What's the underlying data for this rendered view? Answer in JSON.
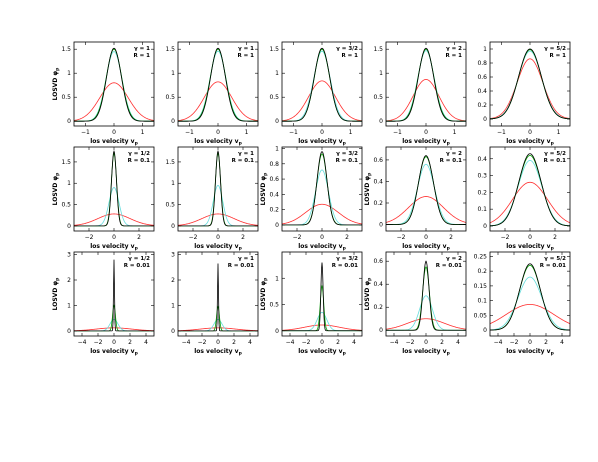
{
  "figure": {
    "colors": {
      "black": "#000000",
      "green": "#00a000",
      "cyan": "#66dddd",
      "red": "#ff3030"
    }
  },
  "chart_data": [
    {
      "type": "line",
      "panel": [
        0,
        0
      ],
      "gamma_label": "γ = 1",
      "r_label": "R = 1",
      "xlabel": "los velocity v_p",
      "ylabel": "LOSVD φ_p",
      "xlim": [
        -1.4,
        1.4
      ],
      "ylim": [
        -0.1,
        1.65
      ],
      "xticks": [
        -1,
        0,
        1
      ],
      "yticks": [
        0,
        0.5,
        1,
        1.5
      ],
      "ytick_labels": [
        "0",
        "0.5",
        "1",
        "1.5"
      ],
      "series": [
        {
          "color": "black",
          "peak": 1.52,
          "width": 0.26
        },
        {
          "color": "green",
          "peak": 1.5,
          "width": 0.27
        },
        {
          "color": "cyan",
          "peak": 1.45,
          "width": 0.28
        },
        {
          "color": "red",
          "peak": 0.8,
          "width": 0.5
        }
      ]
    },
    {
      "type": "line",
      "panel": [
        0,
        1
      ],
      "gamma_label": "γ = 1",
      "r_label": "R = 1",
      "xlabel": "los velocity v_p",
      "ylabel": "",
      "xlim": [
        -1.4,
        1.4
      ],
      "ylim": [
        -0.1,
        1.65
      ],
      "xticks": [
        -1,
        0,
        1
      ],
      "yticks": [
        0,
        0.5,
        1,
        1.5
      ],
      "ytick_labels": [
        "0",
        "0.5",
        "1",
        "1.5"
      ],
      "series": [
        {
          "color": "black",
          "peak": 1.52,
          "width": 0.26
        },
        {
          "color": "green",
          "peak": 1.5,
          "width": 0.27
        },
        {
          "color": "cyan",
          "peak": 1.46,
          "width": 0.28
        },
        {
          "color": "red",
          "peak": 0.82,
          "width": 0.48
        }
      ]
    },
    {
      "type": "line",
      "panel": [
        0,
        2
      ],
      "gamma_label": "γ = 3/2",
      "r_label": "R = 1",
      "xlabel": "los velocity v_p",
      "ylabel": "",
      "xlim": [
        -1.4,
        1.4
      ],
      "ylim": [
        -0.1,
        1.65
      ],
      "xticks": [
        -1,
        0,
        1
      ],
      "yticks": [
        0,
        0.5,
        1,
        1.5
      ],
      "ytick_labels": [
        "0",
        "0.5",
        "1",
        "1.5"
      ],
      "series": [
        {
          "color": "black",
          "peak": 1.52,
          "width": 0.27
        },
        {
          "color": "green",
          "peak": 1.5,
          "width": 0.27
        },
        {
          "color": "cyan",
          "peak": 1.46,
          "width": 0.29
        },
        {
          "color": "red",
          "peak": 0.84,
          "width": 0.47
        }
      ]
    },
    {
      "type": "line",
      "panel": [
        0,
        3
      ],
      "gamma_label": "γ = 2",
      "r_label": "R = 1",
      "xlabel": "los velocity v_p",
      "ylabel": "",
      "xlim": [
        -1.4,
        1.4
      ],
      "ylim": [
        -0.1,
        1.65
      ],
      "xticks": [
        -1,
        0,
        1
      ],
      "yticks": [
        0,
        0.5,
        1,
        1.5
      ],
      "ytick_labels": [
        "0",
        "0.5",
        "1",
        "1.5"
      ],
      "series": [
        {
          "color": "black",
          "peak": 1.52,
          "width": 0.27
        },
        {
          "color": "green",
          "peak": 1.5,
          "width": 0.28
        },
        {
          "color": "cyan",
          "peak": 1.47,
          "width": 0.29
        },
        {
          "color": "red",
          "peak": 0.87,
          "width": 0.45
        }
      ]
    },
    {
      "type": "line",
      "panel": [
        0,
        4
      ],
      "gamma_label": "γ = 5/2",
      "r_label": "R = 1",
      "xlabel": "los velocity v_p",
      "ylabel": "",
      "xlim": [
        -1.4,
        1.4
      ],
      "ylim": [
        -0.1,
        1.1
      ],
      "xticks": [
        -1,
        0,
        1
      ],
      "yticks": [
        0,
        0.2,
        0.4,
        0.6,
        0.8,
        1
      ],
      "ytick_labels": [
        "0",
        "0.2",
        "0.4",
        "0.6",
        "0.8",
        "1"
      ],
      "series": [
        {
          "color": "black",
          "peak": 1.0,
          "width": 0.4
        },
        {
          "color": "green",
          "peak": 0.99,
          "width": 0.4
        },
        {
          "color": "cyan",
          "peak": 0.97,
          "width": 0.41
        },
        {
          "color": "red",
          "peak": 0.86,
          "width": 0.45
        }
      ]
    },
    {
      "type": "line",
      "panel": [
        1,
        0
      ],
      "gamma_label": "γ = 1/2",
      "r_label": "R = 0.1",
      "xlabel": "los velocity v_p",
      "ylabel": "LOSVD φ_p",
      "xlim": [
        -3.2,
        3.2
      ],
      "ylim": [
        -0.12,
        1.85
      ],
      "xticks": [
        -2,
        0,
        2
      ],
      "yticks": [
        0,
        0.5,
        1,
        1.5
      ],
      "ytick_labels": [
        "0",
        "0.5",
        "1",
        "1.5"
      ],
      "series": [
        {
          "color": "black",
          "peak": 1.75,
          "width": 0.2
        },
        {
          "color": "green",
          "peak": 1.7,
          "width": 0.21
        },
        {
          "color": "cyan",
          "peak": 0.9,
          "width": 0.4
        },
        {
          "color": "red",
          "peak": 0.28,
          "width": 1.3
        }
      ]
    },
    {
      "type": "line",
      "panel": [
        1,
        1
      ],
      "gamma_label": "γ = 1",
      "r_label": "R = 0.1",
      "xlabel": "los velocity v_p",
      "ylabel": "",
      "xlim": [
        -3.2,
        3.2
      ],
      "ylim": [
        -0.12,
        1.85
      ],
      "xticks": [
        -2,
        0,
        2
      ],
      "yticks": [
        0,
        0.5,
        1,
        1.5
      ],
      "ytick_labels": [
        "0",
        "0.5",
        "1",
        "1.5"
      ],
      "series": [
        {
          "color": "black",
          "peak": 1.75,
          "width": 0.2
        },
        {
          "color": "green",
          "peak": 1.7,
          "width": 0.21
        },
        {
          "color": "cyan",
          "peak": 0.95,
          "width": 0.38
        },
        {
          "color": "red",
          "peak": 0.28,
          "width": 1.3
        }
      ]
    },
    {
      "type": "line",
      "panel": [
        1,
        2
      ],
      "gamma_label": "γ = 3/2",
      "r_label": "R = 0.1",
      "xlabel": "los velocity v_p",
      "ylabel": "LOSVD φ_p",
      "xlim": [
        -3.2,
        3.2
      ],
      "ylim": [
        -0.08,
        1.02
      ],
      "xticks": [
        -2,
        0,
        2
      ],
      "yticks": [
        0,
        0.2,
        0.4,
        0.6,
        0.8,
        1
      ],
      "ytick_labels": [
        "0",
        "0.2",
        "0.4",
        "0.6",
        "0.8",
        "1"
      ],
      "series": [
        {
          "color": "black",
          "peak": 0.96,
          "width": 0.4
        },
        {
          "color": "green",
          "peak": 0.93,
          "width": 0.41
        },
        {
          "color": "cyan",
          "peak": 0.72,
          "width": 0.52
        },
        {
          "color": "red",
          "peak": 0.27,
          "width": 1.3
        }
      ]
    },
    {
      "type": "line",
      "panel": [
        1,
        3
      ],
      "gamma_label": "γ = 2",
      "r_label": "R = 0.1",
      "xlabel": "los velocity v_p",
      "ylabel": "LOSVD φ_p",
      "xlim": [
        -3.2,
        3.2
      ],
      "ylim": [
        -0.06,
        0.72
      ],
      "xticks": [
        -2,
        0,
        2
      ],
      "yticks": [
        0,
        0.2,
        0.4,
        0.6
      ],
      "ytick_labels": [
        "0",
        "0.2",
        "0.4",
        "0.6"
      ],
      "series": [
        {
          "color": "black",
          "peak": 0.64,
          "width": 0.6
        },
        {
          "color": "green",
          "peak": 0.63,
          "width": 0.61
        },
        {
          "color": "cyan",
          "peak": 0.56,
          "width": 0.68
        },
        {
          "color": "red",
          "peak": 0.26,
          "width": 1.4
        }
      ]
    },
    {
      "type": "line",
      "panel": [
        1,
        4
      ],
      "gamma_label": "γ = 5/2",
      "r_label": "R = 0.1",
      "xlabel": "los velocity v_p",
      "ylabel": "",
      "xlim": [
        -3.2,
        3.2
      ],
      "ylim": [
        -0.03,
        0.47
      ],
      "xticks": [
        -2,
        0,
        2
      ],
      "yticks": [
        0,
        0.1,
        0.2,
        0.3,
        0.4
      ],
      "ytick_labels": [
        "0",
        "0.1",
        "0.2",
        "0.3",
        "0.4"
      ],
      "series": [
        {
          "color": "black",
          "peak": 0.43,
          "width": 0.9
        },
        {
          "color": "green",
          "peak": 0.42,
          "width": 0.91
        },
        {
          "color": "cyan",
          "peak": 0.39,
          "width": 0.95
        },
        {
          "color": "red",
          "peak": 0.26,
          "width": 1.4
        }
      ]
    },
    {
      "type": "line",
      "panel": [
        2,
        0
      ],
      "gamma_label": "γ = 1/2",
      "r_label": "R = 0.01",
      "xlabel": "los velocity v_p",
      "ylabel": "LOSVD φ_p",
      "xlim": [
        -5,
        5
      ],
      "ylim": [
        -0.2,
        3.1
      ],
      "xticks": [
        -4,
        -2,
        0,
        2,
        4
      ],
      "yticks": [
        0,
        1,
        2,
        3
      ],
      "ytick_labels": [
        "0",
        "1",
        "2",
        "3"
      ],
      "series": [
        {
          "color": "black",
          "peak": 2.8,
          "width": 0.06
        },
        {
          "color": "green",
          "peak": 1.0,
          "width": 0.18
        },
        {
          "color": "cyan",
          "peak": 0.45,
          "width": 0.5
        },
        {
          "color": "red",
          "peak": 0.12,
          "width": 2.2
        }
      ]
    },
    {
      "type": "line",
      "panel": [
        2,
        1
      ],
      "gamma_label": "γ = 1",
      "r_label": "R = 0.01",
      "xlabel": "los velocity v_p",
      "ylabel": "",
      "xlim": [
        -5,
        5
      ],
      "ylim": [
        -0.2,
        3.1
      ],
      "xticks": [
        -4,
        -2,
        0,
        2,
        4
      ],
      "yticks": [
        0,
        1,
        2,
        3
      ],
      "ytick_labels": [
        "0",
        "1",
        "2",
        "3"
      ],
      "series": [
        {
          "color": "black",
          "peak": 2.65,
          "width": 0.06
        },
        {
          "color": "green",
          "peak": 0.95,
          "width": 0.18
        },
        {
          "color": "cyan",
          "peak": 0.45,
          "width": 0.5
        },
        {
          "color": "red",
          "peak": 0.12,
          "width": 2.2
        }
      ]
    },
    {
      "type": "line",
      "panel": [
        2,
        2
      ],
      "gamma_label": "γ = 3/2",
      "r_label": "R = 0.01",
      "xlabel": "los velocity v_p",
      "ylabel": "LOSVD φ_p",
      "xlim": [
        -5,
        5
      ],
      "ylim": [
        -0.1,
        1.5
      ],
      "xticks": [
        -4,
        -2,
        0,
        2,
        4
      ],
      "yticks": [
        0,
        0.5,
        1
      ],
      "ytick_labels": [
        "0",
        "0.5",
        "1"
      ],
      "series": [
        {
          "color": "black",
          "peak": 1.3,
          "width": 0.14
        },
        {
          "color": "green",
          "peak": 0.85,
          "width": 0.22
        },
        {
          "color": "cyan",
          "peak": 0.35,
          "width": 0.6
        },
        {
          "color": "red",
          "peak": 0.11,
          "width": 2.2
        }
      ]
    },
    {
      "type": "line",
      "panel": [
        2,
        3
      ],
      "gamma_label": "γ = 2",
      "r_label": "R = 0.01",
      "xlabel": "los velocity v_p",
      "ylabel": "LOSVD φ_p",
      "xlim": [
        -5,
        5
      ],
      "ylim": [
        -0.05,
        0.68
      ],
      "xticks": [
        -4,
        -2,
        0,
        2,
        4
      ],
      "yticks": [
        0,
        0.2,
        0.4,
        0.6
      ],
      "ytick_labels": [
        "0",
        "0.2",
        "0.4",
        "0.6"
      ],
      "series": [
        {
          "color": "black",
          "peak": 0.6,
          "width": 0.38
        },
        {
          "color": "green",
          "peak": 0.55,
          "width": 0.42
        },
        {
          "color": "cyan",
          "peak": 0.3,
          "width": 0.8
        },
        {
          "color": "red",
          "peak": 0.1,
          "width": 2.3
        }
      ]
    },
    {
      "type": "line",
      "panel": [
        2,
        4
      ],
      "gamma_label": "γ = 5/2",
      "r_label": "R = 0.01",
      "xlabel": "los velocity v_p",
      "ylabel": "",
      "xlim": [
        -5,
        5
      ],
      "ylim": [
        -0.02,
        0.265
      ],
      "xticks": [
        -4,
        -2,
        0,
        2,
        4
      ],
      "yticks": [
        0,
        0.05,
        0.1,
        0.15,
        0.2,
        0.25
      ],
      "ytick_labels": [
        "0",
        "0.05",
        "0.1",
        "0.15",
        "0.2",
        "0.25"
      ],
      "series": [
        {
          "color": "black",
          "peak": 0.225,
          "width": 1.3
        },
        {
          "color": "green",
          "peak": 0.22,
          "width": 1.32
        },
        {
          "color": "cyan",
          "peak": 0.18,
          "width": 1.5
        },
        {
          "color": "red",
          "peak": 0.087,
          "width": 3.0
        }
      ]
    }
  ]
}
